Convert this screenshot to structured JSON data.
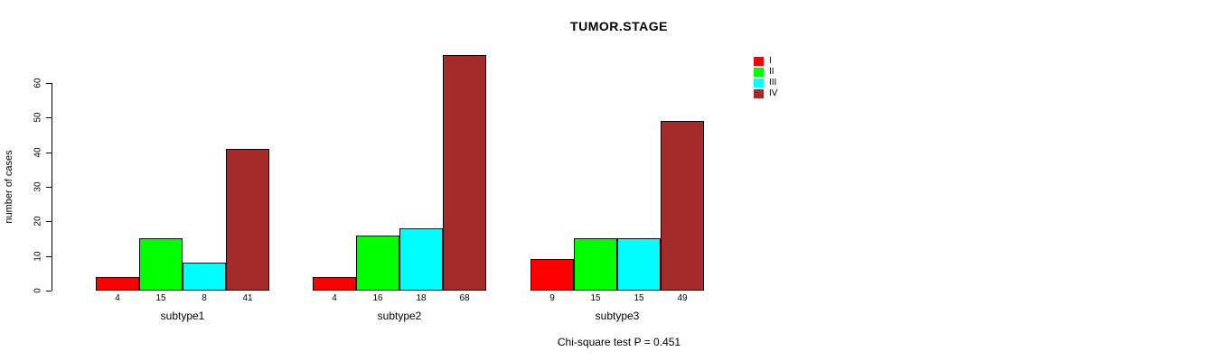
{
  "title": "TUMOR.STAGE",
  "chart_data": {
    "type": "bar",
    "title": "TUMOR.STAGE",
    "categories": [
      "subtype1",
      "subtype2",
      "subtype3"
    ],
    "series": [
      {
        "name": "I",
        "color": "#ff0000",
        "values": [
          4,
          4,
          9
        ]
      },
      {
        "name": "II",
        "color": "#00ff00",
        "values": [
          15,
          16,
          15
        ]
      },
      {
        "name": "III",
        "color": "#00ffff",
        "values": [
          8,
          18,
          15
        ]
      },
      {
        "name": "IV",
        "color": "#a52a2a",
        "values": [
          41,
          68,
          49
        ]
      }
    ],
    "bar_value_labels": [
      [
        "4",
        "15",
        "8",
        "41"
      ],
      [
        "4",
        "16",
        "18",
        "68"
      ],
      [
        "9",
        "15",
        "15",
        "49"
      ]
    ],
    "xlabel": "",
    "ylabel": "number of cases",
    "yticks": [
      0,
      10,
      20,
      30,
      40,
      50,
      60
    ],
    "ylim": [
      0,
      68
    ],
    "grid": false,
    "legend_position": "top-right",
    "annotation": "Chi-square test P = 0.451"
  }
}
